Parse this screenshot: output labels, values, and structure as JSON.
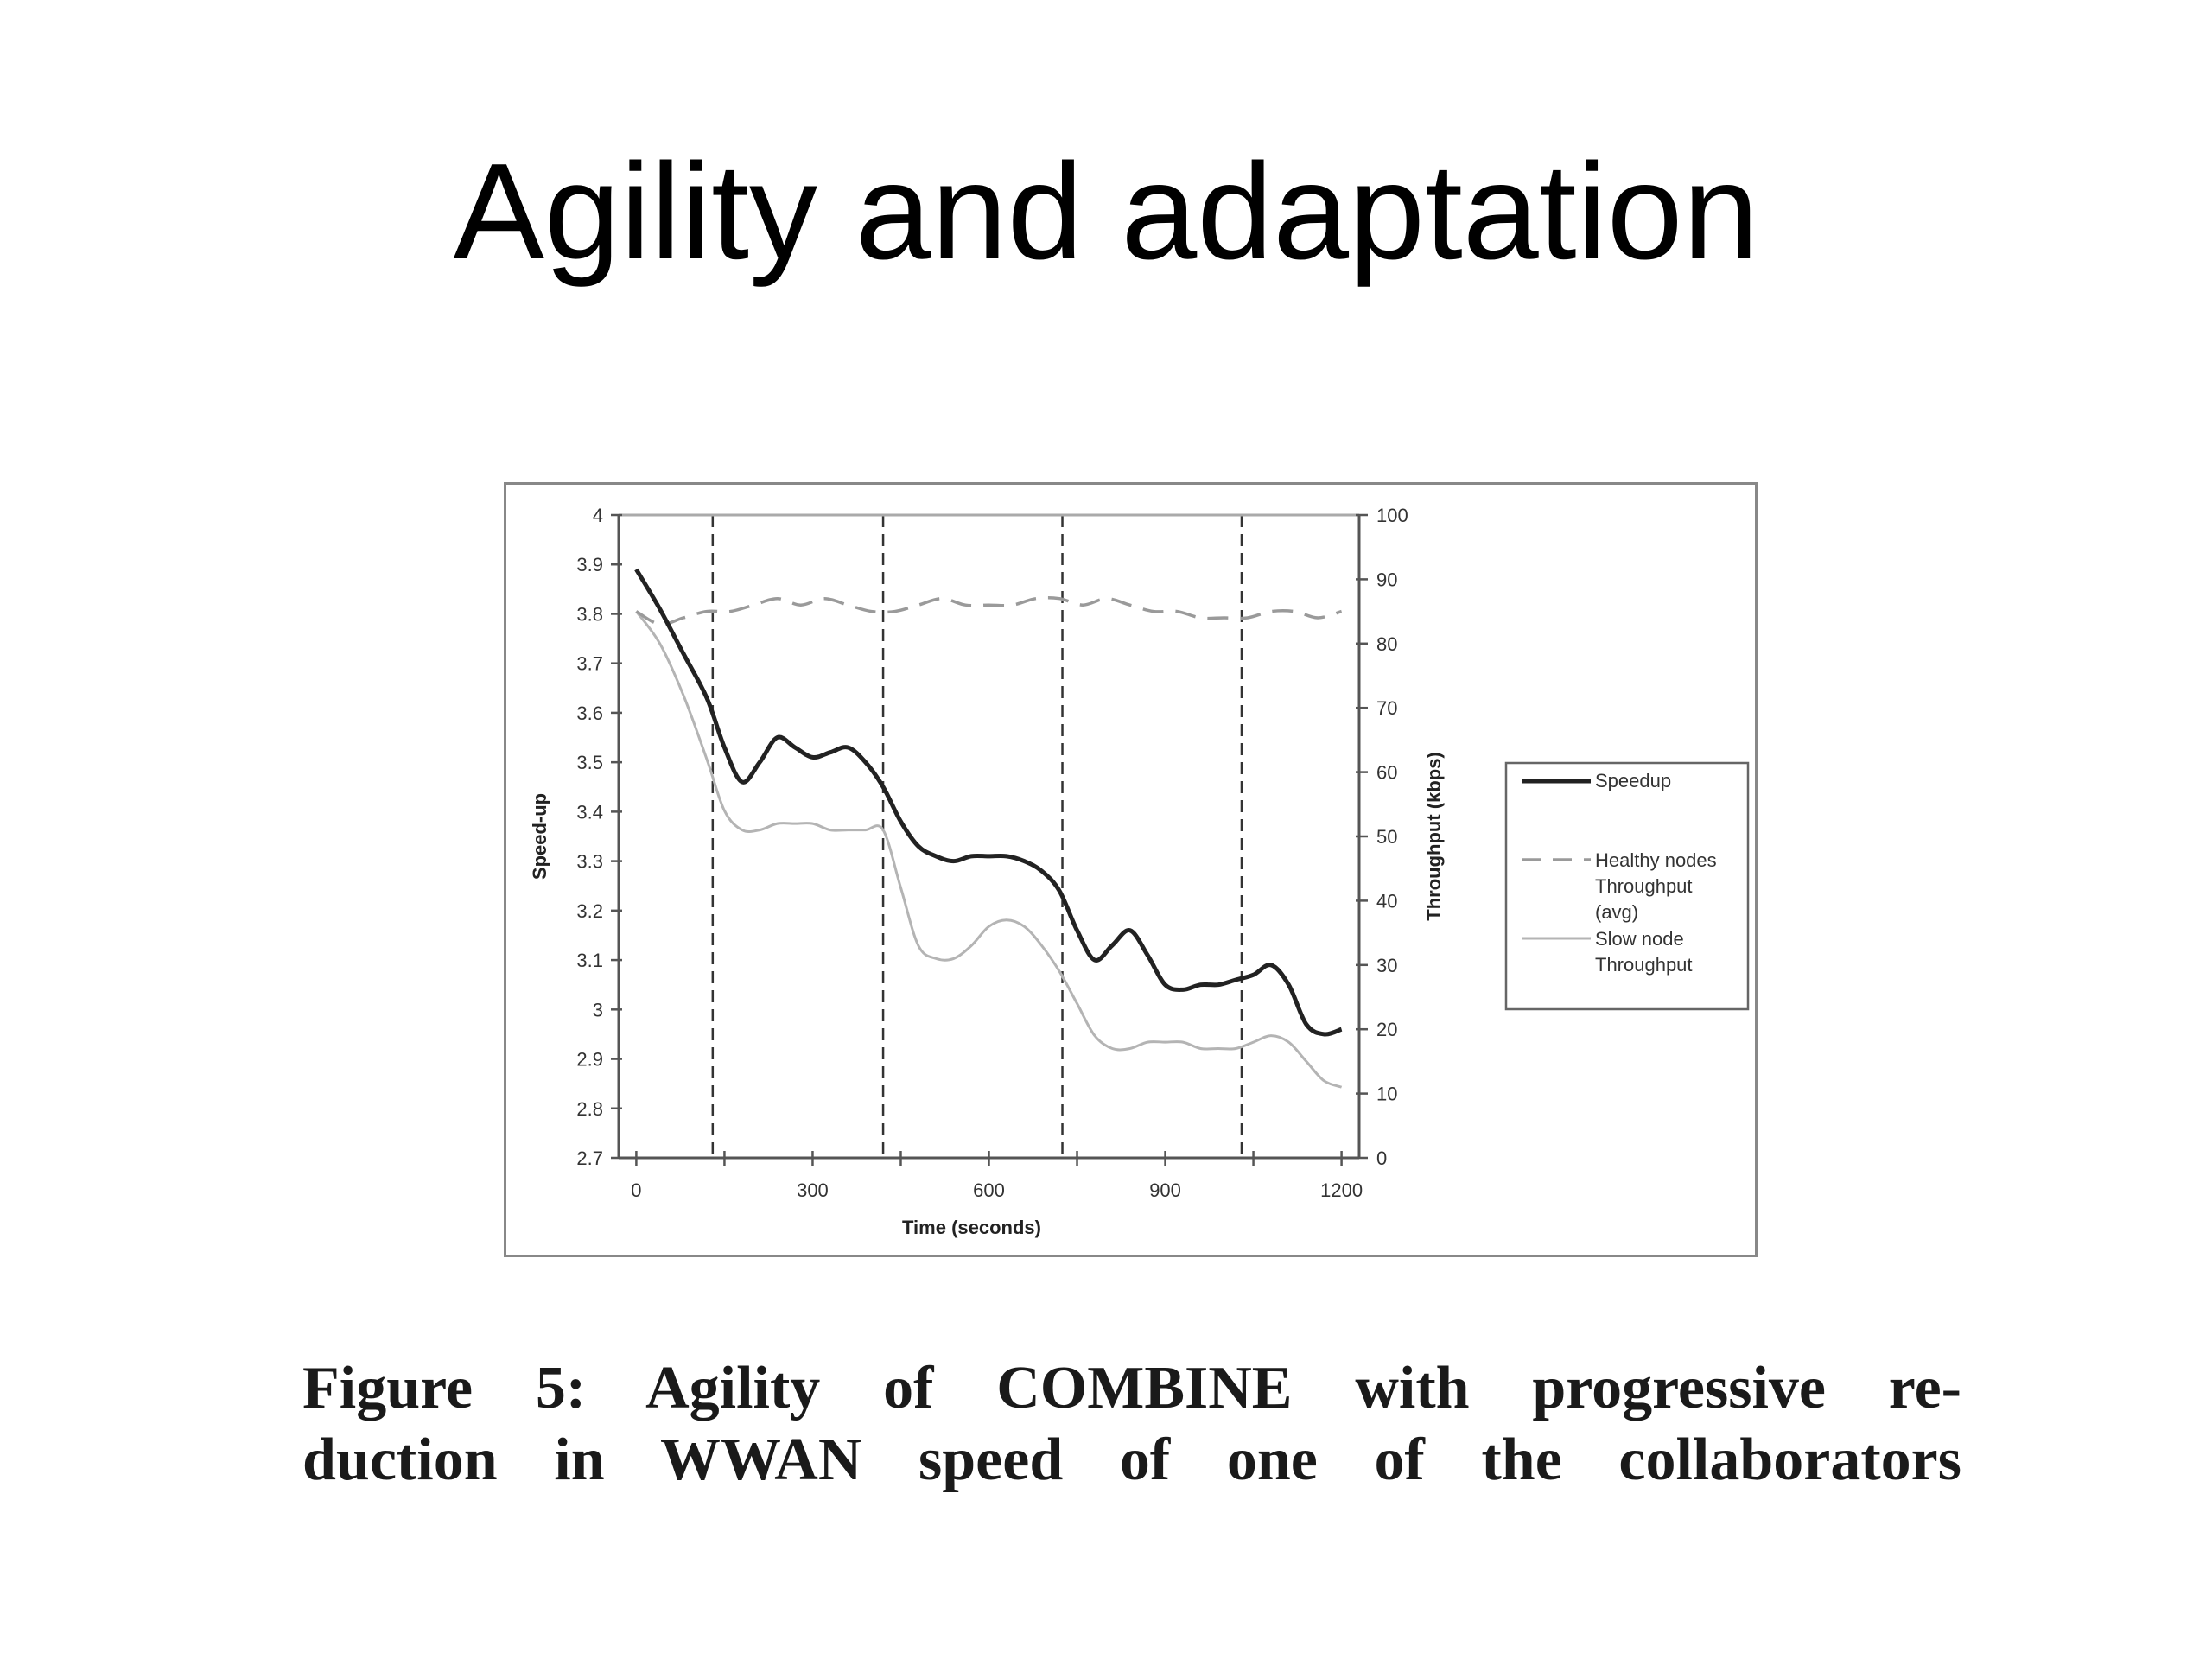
{
  "title": "Agility and adaptation",
  "caption": {
    "line1": "Figure 5: Agility of COMBINE with progressive re-",
    "line2": "duction in WWAN speed of one of the collaborators"
  },
  "chart_data": {
    "type": "line",
    "xlabel": "Time (seconds)",
    "ylabel": "Speed-up",
    "y2label": "Throughput (kbps)",
    "xlim": [
      -30,
      1230
    ],
    "ylim": [
      2.7,
      4.0
    ],
    "y2lim": [
      0,
      100
    ],
    "x_ticks": [
      0,
      300,
      600,
      900,
      1200
    ],
    "x_tick_labels": [
      "0",
      "300",
      "600",
      "900",
      "1200"
    ],
    "y_ticks": [
      2.7,
      2.8,
      2.9,
      3.0,
      3.1,
      3.2,
      3.3,
      3.4,
      3.5,
      3.6,
      3.7,
      3.8,
      3.9,
      4.0
    ],
    "y_tick_labels": [
      "2.7",
      "2.8",
      "2.9",
      "3",
      "3.1",
      "3.2",
      "3.3",
      "3.4",
      "3.5",
      "3.6",
      "3.7",
      "3.8",
      "3.9",
      "4"
    ],
    "y2_ticks": [
      0,
      10,
      20,
      30,
      40,
      50,
      60,
      70,
      80,
      90,
      100
    ],
    "y2_tick_labels": [
      "0",
      "10",
      "20",
      "30",
      "40",
      "50",
      "60",
      "70",
      "80",
      "90",
      "100"
    ],
    "vertical_markers": [
      130,
      420,
      725,
      1030
    ],
    "legend_position": "right",
    "colors": {
      "speedup": "#222222",
      "healthy": "#9a9a9a",
      "slow": "#b4b4b4",
      "marker": "#333333",
      "axis": "#555555"
    },
    "series": [
      {
        "name": "Speedup",
        "axis": "left",
        "style": "solid-thick",
        "x": [
          0,
          40,
          80,
          120,
          150,
          180,
          210,
          240,
          270,
          300,
          330,
          360,
          390,
          420,
          450,
          480,
          510,
          540,
          570,
          600,
          630,
          660,
          690,
          720,
          750,
          780,
          810,
          840,
          870,
          900,
          930,
          960,
          990,
          1020,
          1050,
          1080,
          1110,
          1140,
          1170,
          1200
        ],
        "values": [
          3.89,
          3.81,
          3.72,
          3.63,
          3.53,
          3.46,
          3.5,
          3.55,
          3.53,
          3.51,
          3.52,
          3.53,
          3.5,
          3.45,
          3.38,
          3.33,
          3.31,
          3.3,
          3.31,
          3.31,
          3.31,
          3.3,
          3.28,
          3.24,
          3.16,
          3.1,
          3.13,
          3.16,
          3.11,
          3.05,
          3.04,
          3.05,
          3.05,
          3.06,
          3.07,
          3.09,
          3.05,
          2.97,
          2.95,
          2.96
        ]
      },
      {
        "name": "Healthy nodes Throughput (avg)",
        "axis": "right",
        "style": "dashed",
        "x": [
          0,
          40,
          80,
          120,
          160,
          200,
          240,
          280,
          320,
          360,
          400,
          440,
          480,
          520,
          560,
          600,
          640,
          680,
          720,
          760,
          800,
          840,
          880,
          920,
          960,
          1000,
          1040,
          1080,
          1120,
          1160,
          1200
        ],
        "values": [
          85,
          83,
          84,
          85,
          85,
          86,
          87,
          86,
          87,
          86,
          85,
          85,
          86,
          87,
          86,
          86,
          86,
          87,
          87,
          86,
          87,
          86,
          85,
          85,
          84,
          84,
          84,
          85,
          85,
          84,
          85
        ]
      },
      {
        "name": "Slow node Throughput",
        "axis": "right",
        "style": "solid-thin",
        "x": [
          0,
          40,
          80,
          120,
          150,
          180,
          210,
          240,
          270,
          300,
          330,
          360,
          390,
          420,
          450,
          480,
          510,
          540,
          570,
          600,
          630,
          660,
          690,
          720,
          750,
          780,
          810,
          840,
          870,
          900,
          930,
          960,
          990,
          1020,
          1050,
          1080,
          1110,
          1140,
          1170,
          1200
        ],
        "values": [
          85,
          80,
          72,
          62,
          54,
          51,
          51,
          52,
          52,
          52,
          51,
          51,
          51,
          51,
          42,
          33,
          31,
          31,
          33,
          36,
          37,
          36,
          33,
          29,
          24,
          19,
          17,
          17,
          18,
          18,
          18,
          17,
          17,
          17,
          18,
          19,
          18,
          15,
          12,
          11
        ]
      }
    ],
    "legend": {
      "speedup": "Speedup",
      "healthy_lines": [
        "Healthy nodes",
        "Throughput",
        "(avg)"
      ],
      "slow_lines": [
        "Slow node",
        "Throughput"
      ]
    }
  }
}
